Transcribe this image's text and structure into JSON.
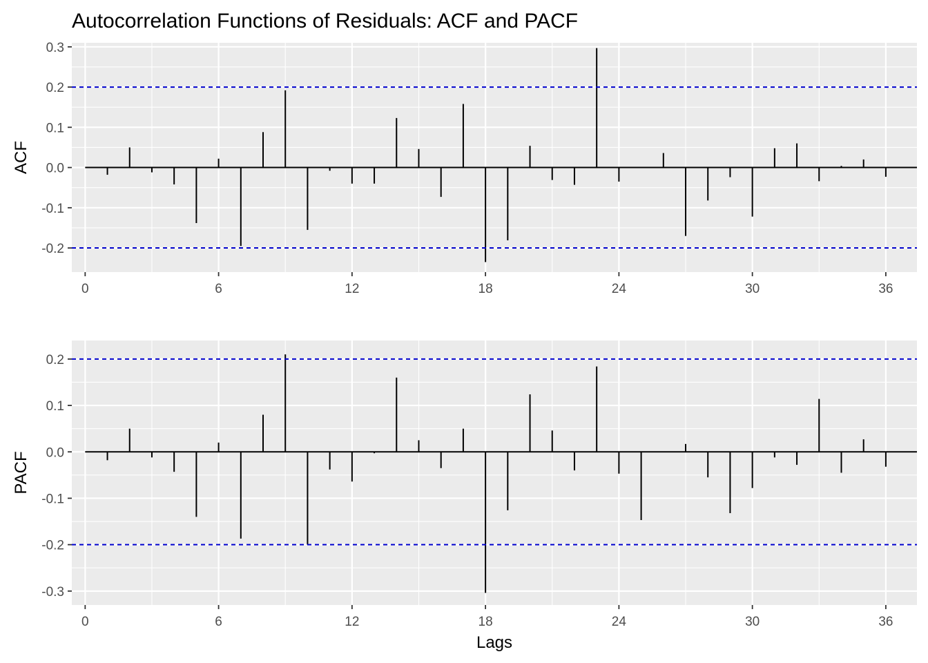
{
  "title": "Autocorrelation Functions of Residuals: ACF and PACF",
  "xlabel": "Lags",
  "colors": {
    "panel_background": "#EBEBEB",
    "grid": "#FFFFFF",
    "bar": "#000000",
    "confidence_line": "#0000CD",
    "tick_text": "#4D4D4D"
  },
  "chart_data": [
    {
      "type": "bar",
      "ylabel": "ACF",
      "x": [
        1,
        2,
        3,
        4,
        5,
        6,
        7,
        8,
        9,
        10,
        11,
        12,
        13,
        14,
        15,
        16,
        17,
        18,
        19,
        20,
        21,
        22,
        23,
        24,
        25,
        26,
        27,
        28,
        29,
        30,
        31,
        32,
        33,
        34,
        35,
        36
      ],
      "values": [
        -0.018,
        0.05,
        -0.012,
        -0.042,
        -0.138,
        0.022,
        -0.195,
        0.088,
        0.192,
        -0.155,
        -0.008,
        -0.04,
        -0.04,
        0.123,
        0.046,
        -0.073,
        0.158,
        -0.235,
        -0.181,
        0.054,
        -0.031,
        -0.043,
        0.297,
        -0.035,
        0.0,
        0.036,
        -0.17,
        -0.082,
        -0.024,
        -0.122,
        0.048,
        0.06,
        -0.034,
        0.004,
        0.02,
        -0.023
      ],
      "confidence_bounds": [
        0.2,
        -0.2
      ],
      "xlim": [
        -0.6,
        37.4
      ],
      "ylim": [
        -0.26,
        0.31
      ],
      "x_ticks": [
        0,
        6,
        12,
        18,
        24,
        30,
        36
      ],
      "x_tick_labels": [
        "0",
        "6",
        "12",
        "18",
        "24",
        "30",
        "36"
      ],
      "y_ticks": [
        -0.2,
        -0.1,
        0.0,
        0.1,
        0.2,
        0.3
      ],
      "y_tick_labels": [
        "-0.2",
        "-0.1",
        "0.0",
        "0.1",
        "0.2",
        "0.3"
      ],
      "grid": true
    },
    {
      "type": "bar",
      "ylabel": "PACF",
      "x": [
        1,
        2,
        3,
        4,
        5,
        6,
        7,
        8,
        9,
        10,
        11,
        12,
        13,
        14,
        15,
        16,
        17,
        18,
        19,
        20,
        21,
        22,
        23,
        24,
        25,
        26,
        27,
        28,
        29,
        30,
        31,
        32,
        33,
        34,
        35,
        36
      ],
      "values": [
        -0.018,
        0.05,
        -0.012,
        -0.043,
        -0.14,
        0.02,
        -0.187,
        0.08,
        0.21,
        -0.2,
        -0.038,
        -0.064,
        -0.003,
        0.16,
        0.025,
        -0.035,
        0.05,
        -0.304,
        -0.126,
        0.124,
        0.046,
        -0.04,
        0.184,
        -0.047,
        -0.147,
        0.0,
        0.017,
        -0.055,
        -0.132,
        -0.078,
        -0.012,
        -0.028,
        0.114,
        -0.045,
        0.027,
        -0.032
      ],
      "confidence_bounds": [
        0.2,
        -0.2
      ],
      "xlim": [
        -0.6,
        37.4
      ],
      "ylim": [
        -0.33,
        0.24
      ],
      "x_ticks": [
        0,
        6,
        12,
        18,
        24,
        30,
        36
      ],
      "x_tick_labels": [
        "0",
        "6",
        "12",
        "18",
        "24",
        "30",
        "36"
      ],
      "y_ticks": [
        -0.3,
        -0.2,
        -0.1,
        0.0,
        0.1,
        0.2
      ],
      "y_tick_labels": [
        "-0.3",
        "-0.2",
        "-0.1",
        "0.0",
        "0.1",
        "0.2"
      ],
      "grid": true
    }
  ]
}
